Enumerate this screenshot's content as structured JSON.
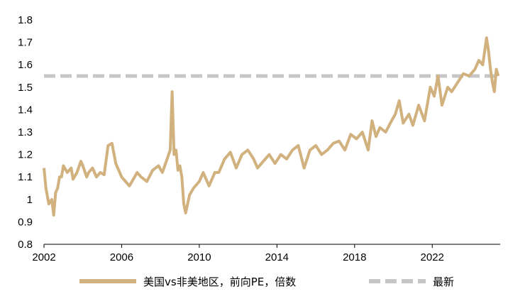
{
  "chart_data": {
    "type": "line",
    "title": "",
    "xlabel": "",
    "ylabel": "",
    "xlim": [
      2002,
      2025.5
    ],
    "ylim": [
      0.8,
      1.8
    ],
    "x_ticks": [
      2002,
      2006,
      2010,
      2014,
      2018,
      2022
    ],
    "y_ticks": [
      0.8,
      0.9,
      1,
      1.1,
      1.2,
      1.3,
      1.4,
      1.5,
      1.6,
      1.7,
      1.8
    ],
    "y_tick_labels": [
      "0.8",
      "0.9",
      "1",
      "1.1",
      "1.2",
      "1.3",
      "1.4",
      "1.5",
      "1.6",
      "1.7",
      "1.8"
    ],
    "grid": false,
    "legend_position": "bottom",
    "series": [
      {
        "name": "美国vs非美地区，前向PE，倍数",
        "style": "solid",
        "color": "#d1b17e",
        "x": [
          2002.0,
          2002.1,
          2002.25,
          2002.4,
          2002.5,
          2002.6,
          2002.7,
          2002.8,
          2002.9,
          2003.0,
          2003.2,
          2003.4,
          2003.5,
          2003.7,
          2003.9,
          2004.0,
          2004.2,
          2004.3,
          2004.5,
          2004.7,
          2004.9,
          2005.1,
          2005.3,
          2005.5,
          2005.7,
          2005.9,
          2006.0,
          2006.2,
          2006.4,
          2006.6,
          2006.8,
          2007.0,
          2007.3,
          2007.6,
          2007.9,
          2008.1,
          2008.3,
          2008.5,
          2008.6,
          2008.7,
          2008.8,
          2008.9,
          2009.0,
          2009.1,
          2009.2,
          2009.3,
          2009.5,
          2009.7,
          2010.0,
          2010.2,
          2010.5,
          2010.8,
          2011.0,
          2011.3,
          2011.6,
          2011.9,
          2012.2,
          2012.5,
          2012.8,
          2013.0,
          2013.3,
          2013.6,
          2013.9,
          2014.2,
          2014.5,
          2014.8,
          2015.1,
          2015.4,
          2015.7,
          2016.0,
          2016.3,
          2016.6,
          2016.9,
          2017.2,
          2017.5,
          2017.8,
          2018.1,
          2018.4,
          2018.7,
          2018.9,
          2019.1,
          2019.3,
          2019.6,
          2019.9,
          2020.1,
          2020.3,
          2020.5,
          2020.8,
          2021.0,
          2021.3,
          2021.6,
          2021.9,
          2022.1,
          2022.3,
          2022.5,
          2022.8,
          2023.0,
          2023.3,
          2023.6,
          2023.9,
          2024.2,
          2024.4,
          2024.6,
          2024.8,
          2024.9,
          2025.0,
          2025.1,
          2025.2,
          2025.3,
          2025.4
        ],
        "values": [
          1.14,
          1.05,
          0.98,
          1.0,
          0.93,
          1.03,
          1.05,
          1.1,
          1.1,
          1.15,
          1.12,
          1.14,
          1.09,
          1.12,
          1.17,
          1.15,
          1.1,
          1.12,
          1.14,
          1.1,
          1.12,
          1.11,
          1.24,
          1.25,
          1.16,
          1.12,
          1.1,
          1.08,
          1.06,
          1.09,
          1.12,
          1.1,
          1.08,
          1.13,
          1.15,
          1.12,
          1.17,
          1.22,
          1.48,
          1.2,
          1.22,
          1.13,
          1.15,
          1.1,
          0.98,
          0.94,
          1.02,
          1.05,
          1.08,
          1.12,
          1.06,
          1.12,
          1.12,
          1.18,
          1.21,
          1.14,
          1.2,
          1.22,
          1.18,
          1.14,
          1.17,
          1.2,
          1.16,
          1.2,
          1.18,
          1.22,
          1.24,
          1.14,
          1.22,
          1.24,
          1.2,
          1.22,
          1.25,
          1.26,
          1.22,
          1.29,
          1.27,
          1.3,
          1.22,
          1.35,
          1.28,
          1.32,
          1.3,
          1.35,
          1.38,
          1.44,
          1.34,
          1.38,
          1.33,
          1.42,
          1.35,
          1.5,
          1.46,
          1.55,
          1.42,
          1.5,
          1.48,
          1.52,
          1.56,
          1.55,
          1.58,
          1.62,
          1.6,
          1.72,
          1.66,
          1.58,
          1.52,
          1.48,
          1.58,
          1.55
        ]
      },
      {
        "name": "最新",
        "style": "dashed",
        "color": "#c6c6c6",
        "x": [
          2002.0,
          2025.4
        ],
        "values": [
          1.55,
          1.55
        ]
      }
    ]
  }
}
